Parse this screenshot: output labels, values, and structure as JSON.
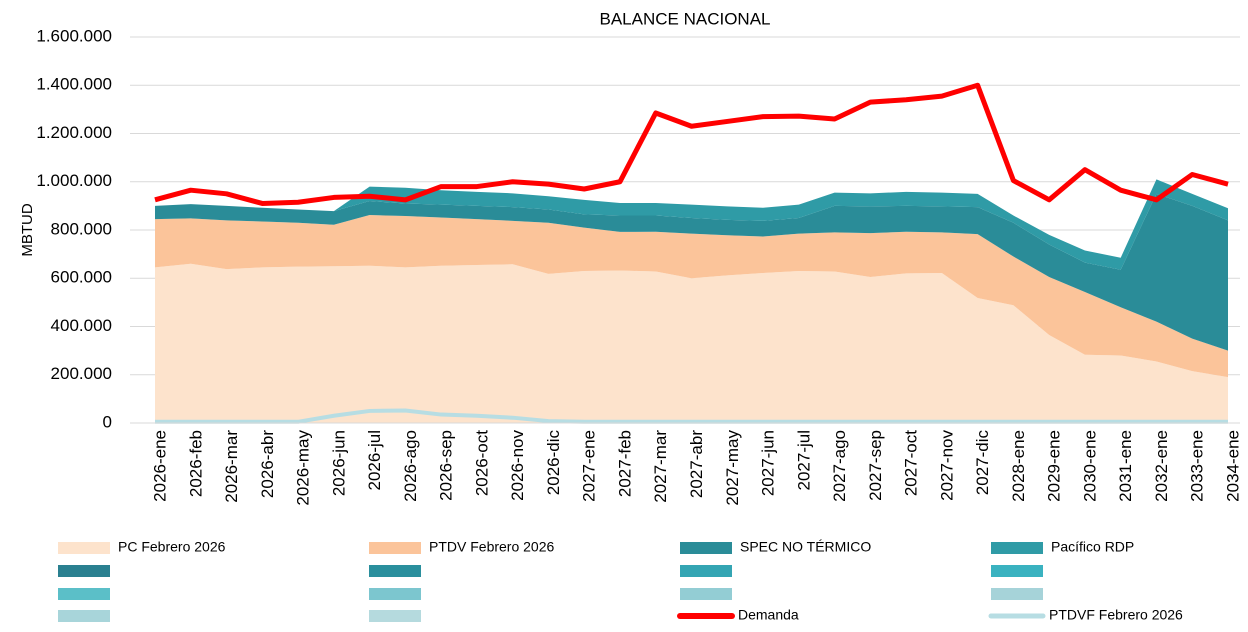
{
  "chart_data": {
    "type": "area",
    "title": "BALANCE NACIONAL",
    "y_label": "MBTUD",
    "categories": [
      "2026-ene",
      "2026-feb",
      "2026-mar",
      "2026-abr",
      "2026-may",
      "2026-jun",
      "2026-jul",
      "2026-ago",
      "2026-sep",
      "2026-oct",
      "2026-nov",
      "2026-dic",
      "2027-ene",
      "2027-feb",
      "2027-mar",
      "2027-abr",
      "2027-may",
      "2027-jun",
      "2027-jul",
      "2027-ago",
      "2027-sep",
      "2027-oct",
      "2027-nov",
      "2027-dic",
      "2028-ene",
      "2029-ene",
      "2030-ene",
      "2031-ene",
      "2032-ene",
      "2033-ene",
      "2034-ene"
    ],
    "series": [
      {
        "name": "PC Febrero 2026",
        "color": "#fde3cc",
        "type": "area",
        "values": [
          645000,
          660000,
          638000,
          645000,
          648000,
          650000,
          652000,
          645000,
          652000,
          655000,
          658000,
          618000,
          630000,
          632000,
          628000,
          600000,
          612000,
          622000,
          630000,
          628000,
          605000,
          620000,
          622000,
          518000,
          488000,
          365000,
          283000,
          280000,
          255000,
          215000,
          190000
        ]
      },
      {
        "name": "PTDV Febrero 2026",
        "color": "#fbc49a",
        "type": "area",
        "values": [
          200000,
          188000,
          202000,
          190000,
          182000,
          172000,
          210000,
          213000,
          200000,
          190000,
          180000,
          212000,
          180000,
          160000,
          165000,
          185000,
          166000,
          151000,
          155000,
          162000,
          182000,
          173000,
          168000,
          265000,
          202000,
          240000,
          260000,
          200000,
          165000,
          135000,
          110000
        ]
      },
      {
        "name": "SPEC NO TÉRMICO",
        "color": "#2a8c98",
        "type": "area",
        "values": [
          55000,
          59000,
          60000,
          57000,
          55000,
          56000,
          58000,
          52000,
          53000,
          55000,
          57000,
          55000,
          55000,
          68000,
          67000,
          65000,
          64000,
          65000,
          65000,
          110000,
          111000,
          107000,
          108000,
          112000,
          140000,
          135000,
          122000,
          155000,
          530000,
          550000,
          540000
        ]
      },
      {
        "name": "Pacífico RDP",
        "color": "#2f9ba6",
        "type": "area",
        "values": [
          0,
          0,
          0,
          0,
          0,
          0,
          60000,
          65000,
          60000,
          58000,
          57000,
          55000,
          60000,
          52000,
          52000,
          55000,
          56000,
          54000,
          55000,
          55000,
          54000,
          58000,
          57000,
          55000,
          30000,
          40000,
          50000,
          50000,
          60000,
          50000,
          50000
        ]
      },
      {
        "name": "Demanda",
        "color": "#ff0000",
        "type": "line",
        "values": [
          925000,
          965000,
          950000,
          910000,
          915000,
          935000,
          940000,
          925000,
          980000,
          980000,
          1000000,
          990000,
          970000,
          1000000,
          1285000,
          1230000,
          1250000,
          1270000,
          1272000,
          1260000,
          1330000,
          1340000,
          1355000,
          1400000,
          1005000,
          925000,
          1050000,
          965000,
          925000,
          1030000,
          990000
        ]
      },
      {
        "name": "PTDVF Febrero 2026",
        "color": "#b7dde3",
        "type": "line",
        "values": [
          5000,
          5000,
          5000,
          5000,
          5000,
          30000,
          50000,
          52000,
          35000,
          30000,
          22000,
          8000,
          5000,
          5000,
          5000,
          5000,
          5000,
          5000,
          5000,
          5000,
          5000,
          5000,
          5000,
          5000,
          5000,
          5000,
          5000,
          5000,
          5000,
          5000,
          5000
        ]
      }
    ],
    "ylim": [
      0,
      1600000
    ],
    "yticks": [
      0,
      {
        "value": 200000,
        "label": "200.000"
      },
      {
        "value": 400000,
        "label": "400.000"
      },
      {
        "value": 600000,
        "label": "600.000"
      },
      {
        "value": 800000,
        "label": "800.000"
      },
      {
        "value": 1000000,
        "label": "1.000.000"
      },
      {
        "value": 1200000,
        "label": "1.200.000"
      },
      {
        "value": 1400000,
        "label": "1.400.000"
      },
      {
        "value": 1600000,
        "label": "1.600.000"
      }
    ],
    "grid": true
  }
}
